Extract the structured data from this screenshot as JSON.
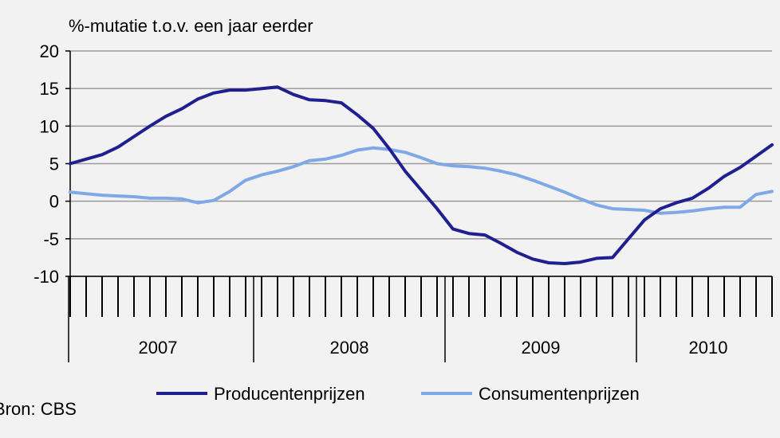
{
  "chart_data": {
    "type": "line",
    "title": "",
    "ylabel": "%-mutatie t.o.v. een jaar eerder",
    "xlabel": "",
    "ylim": [
      -10,
      20
    ],
    "yticks": [
      -10,
      -5,
      0,
      5,
      10,
      15,
      20
    ],
    "grid": true,
    "legend_position": "bottom",
    "years": [
      "2007",
      "2008",
      "2009",
      "2010"
    ],
    "months_per_year": [
      12,
      12,
      12,
      9
    ],
    "x": [
      "jan 2007",
      "feb 2007",
      "mrt 2007",
      "apr 2007",
      "mei 2007",
      "jun 2007",
      "jul 2007",
      "aug 2007",
      "sep 2007",
      "okt 2007",
      "nov 2007",
      "dec 2007",
      "jan 2008",
      "feb 2008",
      "mrt 2008",
      "apr 2008",
      "mei 2008",
      "jun 2008",
      "jul 2008",
      "aug 2008",
      "sep 2008",
      "okt 2008",
      "nov 2008",
      "dec 2008",
      "jan 2009",
      "feb 2009",
      "mrt 2009",
      "apr 2009",
      "mei 2009",
      "jun 2009",
      "jul 2009",
      "aug 2009",
      "sep 2009",
      "okt 2009",
      "nov 2009",
      "dec 2009",
      "jan 2010",
      "feb 2010",
      "mrt 2010",
      "apr 2010",
      "mei 2010",
      "jun 2010",
      "jul 2010",
      "aug 2010",
      "sep 2010"
    ],
    "series": [
      {
        "name": "Producentenprijzen",
        "color": "#1f1f8f",
        "values": [
          5.0,
          5.6,
          6.2,
          7.2,
          8.6,
          10.0,
          11.3,
          12.3,
          13.6,
          14.4,
          14.8,
          14.8,
          15.0,
          15.2,
          14.2,
          13.5,
          13.4,
          13.1,
          11.5,
          9.7,
          7.0,
          4.0,
          1.5,
          -1.0,
          -3.7,
          -4.3,
          -4.5,
          -5.6,
          -6.8,
          -7.7,
          -8.2,
          -8.3,
          -8.1,
          -7.6,
          -7.5,
          -5.0,
          -2.5,
          -1.0,
          -0.2,
          0.4,
          1.7,
          3.3,
          4.5,
          6.0,
          7.5
        ]
      },
      {
        "name": "Consumentenprijzen",
        "color": "#7fa8e6",
        "values": [
          1.2,
          1.0,
          0.8,
          0.7,
          0.6,
          0.4,
          0.4,
          0.3,
          -0.2,
          0.1,
          1.3,
          2.8,
          3.5,
          4.0,
          4.6,
          5.4,
          5.6,
          6.1,
          6.8,
          7.1,
          6.9,
          6.5,
          5.8,
          5.0,
          4.7,
          4.6,
          4.4,
          4.0,
          3.5,
          2.8,
          2.0,
          1.2,
          0.3,
          -0.5,
          -1.0,
          -1.1,
          -1.2,
          -1.6,
          -1.5,
          -1.3,
          -1.0,
          -0.8,
          -0.8,
          0.9,
          1.3
        ]
      }
    ],
    "colors": {
      "plot_background": "#f2f2f2",
      "gridline": "#9a9a9a",
      "axis": "#000000"
    }
  },
  "source": "Bron: CBS"
}
